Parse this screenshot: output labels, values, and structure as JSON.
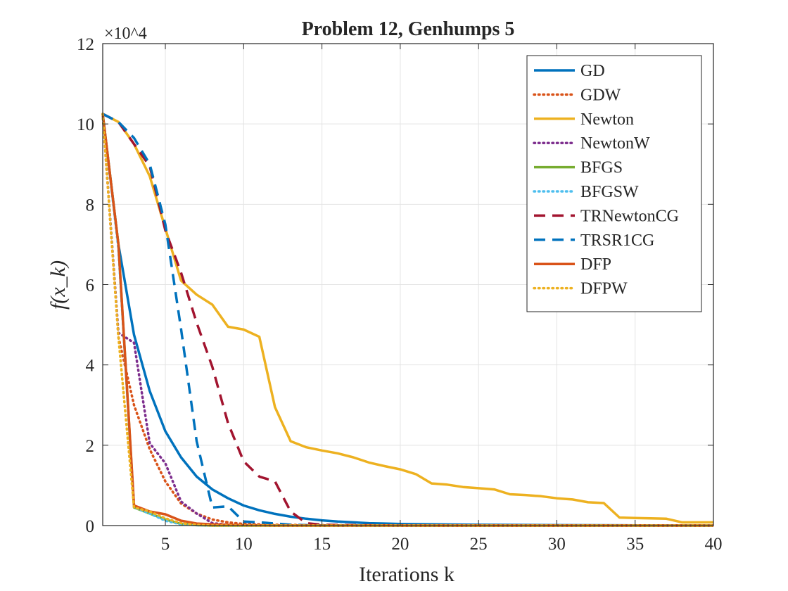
{
  "chart_data": {
    "type": "line",
    "title": "Problem 12, Genhumps 5",
    "xlabel": "Iterations k",
    "ylabel": "f(x_k)",
    "y_exponent_label": "×10^4",
    "xlim": [
      1,
      40
    ],
    "ylim": [
      0,
      12
    ],
    "xticks": [
      5,
      10,
      15,
      20,
      25,
      30,
      35,
      40
    ],
    "yticks": [
      0,
      2,
      4,
      6,
      8,
      10,
      12
    ],
    "grid": true,
    "legend_position": "top-right",
    "series": [
      {
        "name": "GD",
        "color": "#0072BD",
        "style": "solid",
        "x": [
          1,
          2,
          3,
          4,
          5,
          6,
          7,
          8,
          9,
          10,
          11,
          12,
          13,
          14,
          15,
          16,
          17,
          18,
          19,
          20,
          22,
          25,
          30,
          35,
          40
        ],
        "y": [
          10.25,
          7.0,
          4.75,
          3.35,
          2.35,
          1.7,
          1.22,
          0.9,
          0.68,
          0.5,
          0.38,
          0.29,
          0.22,
          0.17,
          0.13,
          0.1,
          0.08,
          0.06,
          0.05,
          0.04,
          0.03,
          0.02,
          0.01,
          0.005,
          0.0
        ]
      },
      {
        "name": "GDW",
        "color": "#D95319",
        "style": "dotted",
        "x": [
          1,
          2,
          3,
          4,
          5,
          6,
          7,
          8,
          9,
          10,
          12,
          15,
          20,
          30,
          40
        ],
        "y": [
          10.25,
          4.7,
          3.0,
          1.9,
          1.1,
          0.55,
          0.3,
          0.15,
          0.08,
          0.04,
          0.02,
          0.01,
          0.0,
          0.0,
          0.0
        ]
      },
      {
        "name": "Newton",
        "color": "#EDB120",
        "style": "solid",
        "x": [
          1,
          2,
          3,
          4,
          5,
          6,
          7,
          8,
          9,
          10,
          11,
          12,
          13,
          14,
          15,
          16,
          17,
          18,
          19,
          20,
          21,
          22,
          23,
          24,
          25,
          26,
          27,
          28,
          29,
          30,
          31,
          32,
          33,
          34,
          35,
          36,
          37,
          38,
          39,
          40
        ],
        "y": [
          10.25,
          10.05,
          9.5,
          8.7,
          7.4,
          6.1,
          5.75,
          5.5,
          4.95,
          4.88,
          4.7,
          2.95,
          2.1,
          1.95,
          1.87,
          1.8,
          1.7,
          1.57,
          1.48,
          1.4,
          1.28,
          1.05,
          1.02,
          0.96,
          0.93,
          0.9,
          0.78,
          0.76,
          0.73,
          0.68,
          0.65,
          0.58,
          0.56,
          0.2,
          0.19,
          0.18,
          0.17,
          0.08,
          0.08,
          0.08
        ]
      },
      {
        "name": "NewtonW",
        "color": "#7E2F8E",
        "style": "dotted",
        "x": [
          1,
          2,
          3,
          4,
          5,
          6,
          7,
          8,
          9,
          10,
          12,
          15,
          20,
          30,
          40
        ],
        "y": [
          10.25,
          4.8,
          4.55,
          2.05,
          1.55,
          0.6,
          0.3,
          0.06,
          0.02,
          0.01,
          0.0,
          0.0,
          0.0,
          0.0,
          0.0
        ]
      },
      {
        "name": "BFGS",
        "color": "#77AC30",
        "style": "solid",
        "x": [
          1,
          2,
          3,
          4,
          5,
          6,
          7,
          8,
          10,
          15,
          20,
          30,
          40
        ],
        "y": [
          10.25,
          7.0,
          0.45,
          0.3,
          0.15,
          0.04,
          0.01,
          0.0,
          0.0,
          0.0,
          0.0,
          0.0,
          0.0
        ]
      },
      {
        "name": "BFGSW",
        "color": "#4DBEEE",
        "style": "dotted",
        "x": [
          1,
          2,
          3,
          4,
          5,
          6,
          7,
          8,
          10,
          15,
          20,
          30,
          40
        ],
        "y": [
          10.25,
          6.9,
          0.45,
          0.3,
          0.12,
          0.03,
          0.01,
          0.0,
          0.0,
          0.0,
          0.0,
          0.0,
          0.0
        ]
      },
      {
        "name": "TRNewtonCG",
        "color": "#A2142F",
        "style": "dashed",
        "x": [
          1,
          2,
          3,
          4,
          5,
          6,
          7,
          8,
          9,
          10,
          11,
          12,
          13,
          14,
          15,
          20,
          30,
          40
        ],
        "y": [
          10.25,
          10.05,
          9.5,
          8.95,
          7.35,
          6.3,
          5.05,
          3.95,
          2.55,
          1.6,
          1.22,
          1.1,
          0.35,
          0.06,
          0.02,
          0.0,
          0.0,
          0.0
        ]
      },
      {
        "name": "TRSR1CG",
        "color": "#0072BD",
        "style": "dashed",
        "x": [
          1,
          2,
          3,
          4,
          5,
          6,
          7,
          8,
          9,
          10,
          11,
          12,
          13,
          14,
          15,
          20,
          30,
          40
        ],
        "y": [
          10.25,
          10.05,
          9.65,
          9.0,
          7.5,
          4.9,
          2.1,
          0.45,
          0.48,
          0.1,
          0.08,
          0.05,
          0.02,
          0.01,
          0.0,
          0.0,
          0.0,
          0.0
        ]
      },
      {
        "name": "DFP",
        "color": "#D95319",
        "style": "solid",
        "x": [
          1,
          2,
          3,
          4,
          5,
          6,
          7,
          8,
          9,
          10,
          12,
          15,
          20,
          30,
          40
        ],
        "y": [
          10.25,
          7.0,
          0.5,
          0.35,
          0.28,
          0.12,
          0.05,
          0.03,
          0.02,
          0.01,
          0.0,
          0.0,
          0.0,
          0.0,
          0.0
        ]
      },
      {
        "name": "DFPW",
        "color": "#EDB120",
        "style": "dotted",
        "x": [
          1,
          2,
          3,
          4,
          5,
          6,
          7,
          8,
          10,
          15,
          20,
          30,
          40
        ],
        "y": [
          10.25,
          4.7,
          0.45,
          0.35,
          0.18,
          0.06,
          0.02,
          0.0,
          0.0,
          0.0,
          0.0,
          0.0,
          0.0
        ]
      }
    ]
  }
}
